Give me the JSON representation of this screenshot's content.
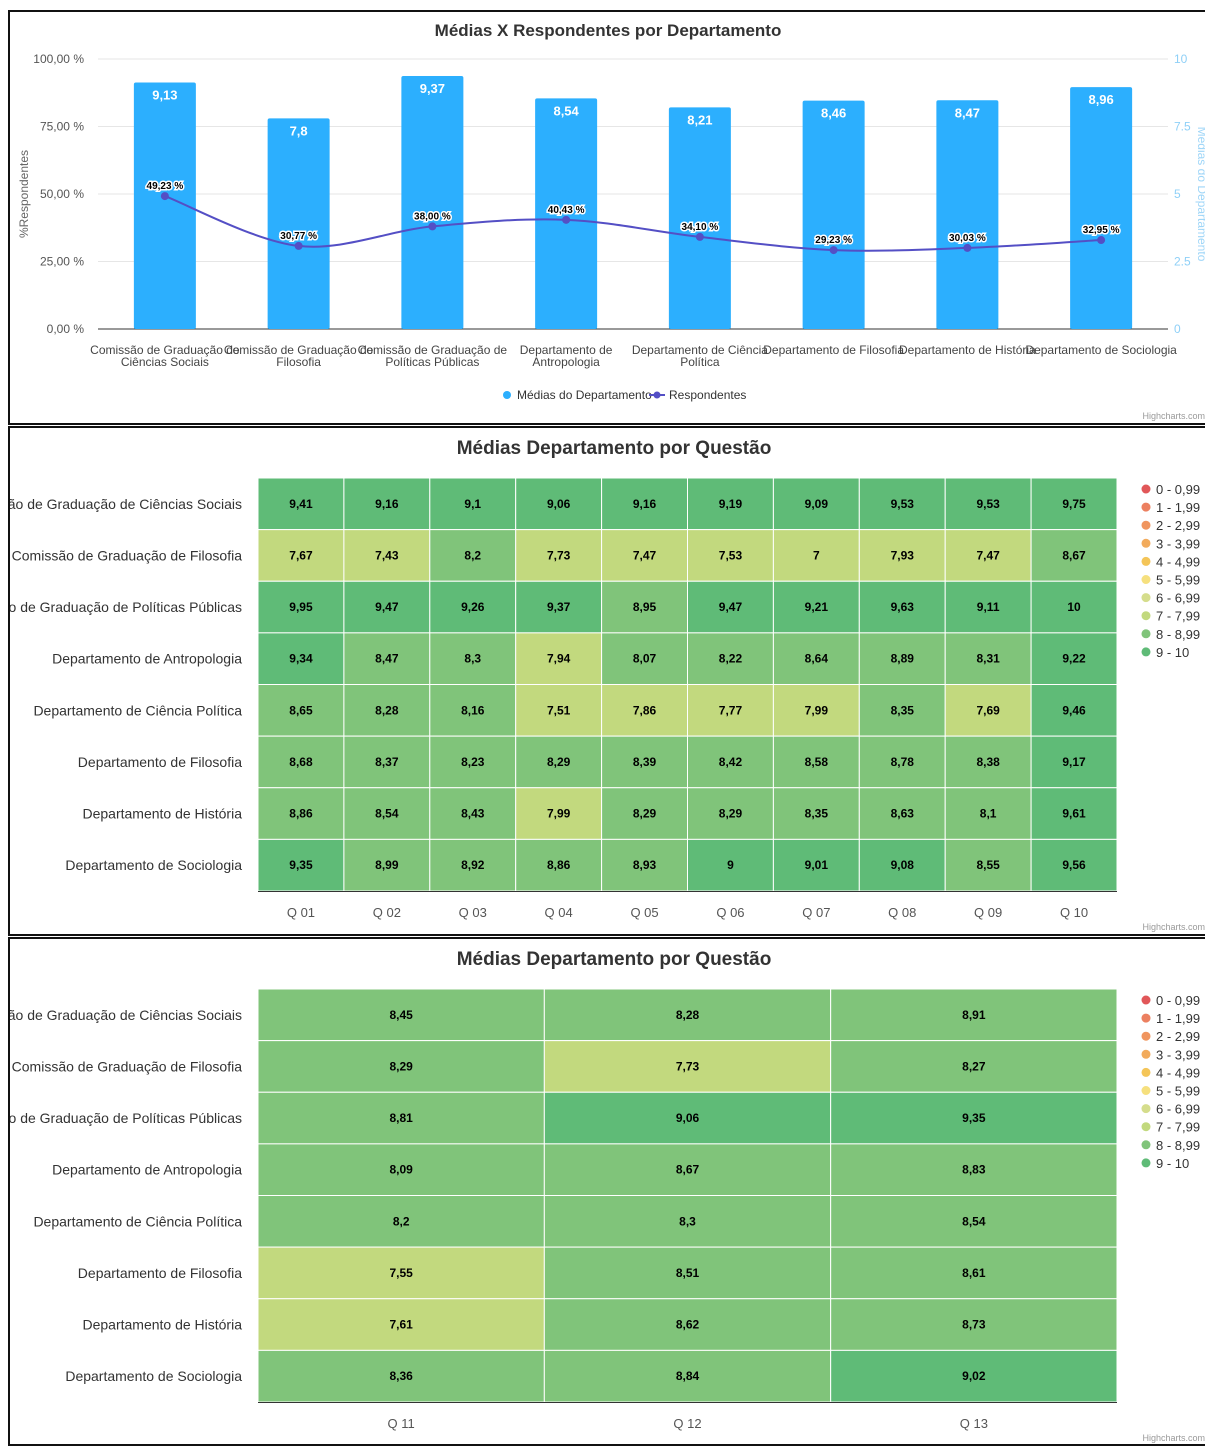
{
  "colors": {
    "bar": "#2caffe",
    "line": "#544fc5",
    "right_axis": "#9fd6f8",
    "heatmap_classes": [
      "#e15759",
      "#ec8060",
      "#f0955e",
      "#f2ab5c",
      "#f4c558",
      "#f6e07e",
      "#d5dd8c",
      "#c2d97e",
      "#80c47a",
      "#5fbb77"
    ]
  },
  "credits": "Highcharts.com",
  "chart_data": [
    {
      "type": "bar+line",
      "title": "Médias X Respondentes por Departamento",
      "categories": [
        "Comissão de Graduação de Ciências Sociais",
        "Comissão de Graduação de Filosofia",
        "Comissão de Graduação de Políticas Públicas",
        "Departamento de Antropologia",
        "Departamento de Ciência Política",
        "Departamento de Filosofia",
        "Departamento de História",
        "Departamento de Sociologia"
      ],
      "ylabel_left": "%Respondentes",
      "ylabel_right": "Médias do Departamento",
      "ylim_left": [
        0,
        100
      ],
      "ylim_right": [
        0,
        10
      ],
      "left_ticks": [
        {
          "value": 0,
          "label": "0,00 %"
        },
        {
          "value": 25,
          "label": "25,00 %"
        },
        {
          "value": 50,
          "label": "50,00 %"
        },
        {
          "value": 75,
          "label": "75,00 %"
        },
        {
          "value": 100,
          "label": "100,00 %"
        }
      ],
      "right_ticks": [
        {
          "value": 0,
          "label": "0"
        },
        {
          "value": 2.5,
          "label": "2.5"
        },
        {
          "value": 5,
          "label": "5"
        },
        {
          "value": 7.5,
          "label": "7.5"
        },
        {
          "value": 10,
          "label": "10"
        }
      ],
      "series": [
        {
          "name": "Médias do Departamento",
          "type": "bar",
          "axis": "right",
          "values": [
            9.13,
            7.8,
            9.37,
            8.54,
            8.21,
            8.46,
            8.47,
            8.96
          ],
          "labels": [
            "9,13",
            "7,8",
            "9,37",
            "8,54",
            "8,21",
            "8,46",
            "8,47",
            "8,96"
          ]
        },
        {
          "name": "Respondentes",
          "type": "line",
          "axis": "left",
          "values": [
            49.23,
            30.77,
            38.0,
            40.43,
            34.1,
            29.23,
            30.03,
            32.95
          ],
          "labels": [
            "49,23 %",
            "30,77 %",
            "38,00 %",
            "40,43 %",
            "34,10 %",
            "29,23 %",
            "30,03 %",
            "32,95 %"
          ]
        }
      ],
      "legend": "bottom-center",
      "grid": true
    },
    {
      "type": "heatmap",
      "title": "Médias Departamento por Questão",
      "rows": [
        "Comissão de Graduação de Ciências Sociais",
        "Comissão de Graduação de Filosofia",
        "Comissão de Graduação de Políticas Públicas",
        "Departamento de Antropologia",
        "Departamento de Ciência Política",
        "Departamento de Filosofia",
        "Departamento de História",
        "Departamento de Sociologia"
      ],
      "columns": [
        "Q 01",
        "Q 02",
        "Q 03",
        "Q 04",
        "Q 05",
        "Q 06",
        "Q 07",
        "Q 08",
        "Q 09",
        "Q 10"
      ],
      "values": [
        [
          "9,41",
          "9,16",
          "9,1",
          "9,06",
          "9,16",
          "9,19",
          "9,09",
          "9,53",
          "9,53",
          "9,75"
        ],
        [
          "7,67",
          "7,43",
          "8,2",
          "7,73",
          "7,47",
          "7,53",
          "7",
          "7,93",
          "7,47",
          "8,67"
        ],
        [
          "9,95",
          "9,47",
          "9,26",
          "9,37",
          "8,95",
          "9,47",
          "9,21",
          "9,63",
          "9,11",
          "10"
        ],
        [
          "9,34",
          "8,47",
          "8,3",
          "7,94",
          "8,07",
          "8,22",
          "8,64",
          "8,89",
          "8,31",
          "9,22"
        ],
        [
          "8,65",
          "8,28",
          "8,16",
          "7,51",
          "7,86",
          "7,77",
          "7,99",
          "8,35",
          "7,69",
          "9,46"
        ],
        [
          "8,68",
          "8,37",
          "8,23",
          "8,29",
          "8,39",
          "8,42",
          "8,58",
          "8,78",
          "8,38",
          "9,17"
        ],
        [
          "8,86",
          "8,54",
          "8,43",
          "7,99",
          "8,29",
          "8,29",
          "8,35",
          "8,63",
          "8,1",
          "9,61"
        ],
        [
          "9,35",
          "8,99",
          "8,92",
          "8,86",
          "8,93",
          "9",
          "9,01",
          "9,08",
          "8,55",
          "9,56"
        ]
      ],
      "legend": "right",
      "legend_classes": [
        "0 - 0,99",
        "1 - 1,99",
        "2 - 2,99",
        "3 - 3,99",
        "4 - 4,99",
        "5 - 5,99",
        "6 - 6,99",
        "7 - 7,99",
        "8 - 8,99",
        "9 - 10"
      ]
    },
    {
      "type": "heatmap",
      "title": "Médias Departamento por Questão",
      "rows": [
        "Comissão de Graduação de Ciências Sociais",
        "Comissão de Graduação de Filosofia",
        "Comissão de Graduação de Políticas Públicas",
        "Departamento de Antropologia",
        "Departamento de Ciência Política",
        "Departamento de Filosofia",
        "Departamento de História",
        "Departamento de Sociologia"
      ],
      "columns": [
        "Q 11",
        "Q 12",
        "Q 13"
      ],
      "values": [
        [
          "8,45",
          "8,28",
          "8,91"
        ],
        [
          "8,29",
          "7,73",
          "8,27"
        ],
        [
          "8,81",
          "9,06",
          "9,35"
        ],
        [
          "8,09",
          "8,67",
          "8,83"
        ],
        [
          "8,2",
          "8,3",
          "8,54"
        ],
        [
          "7,55",
          "8,51",
          "8,61"
        ],
        [
          "7,61",
          "8,62",
          "8,73"
        ],
        [
          "8,36",
          "8,84",
          "9,02"
        ]
      ],
      "legend": "right",
      "legend_classes": [
        "0 - 0,99",
        "1 - 1,99",
        "2 - 2,99",
        "3 - 3,99",
        "4 - 4,99",
        "5 - 5,99",
        "6 - 6,99",
        "7 - 7,99",
        "8 - 8,99",
        "9 - 10"
      ]
    }
  ]
}
